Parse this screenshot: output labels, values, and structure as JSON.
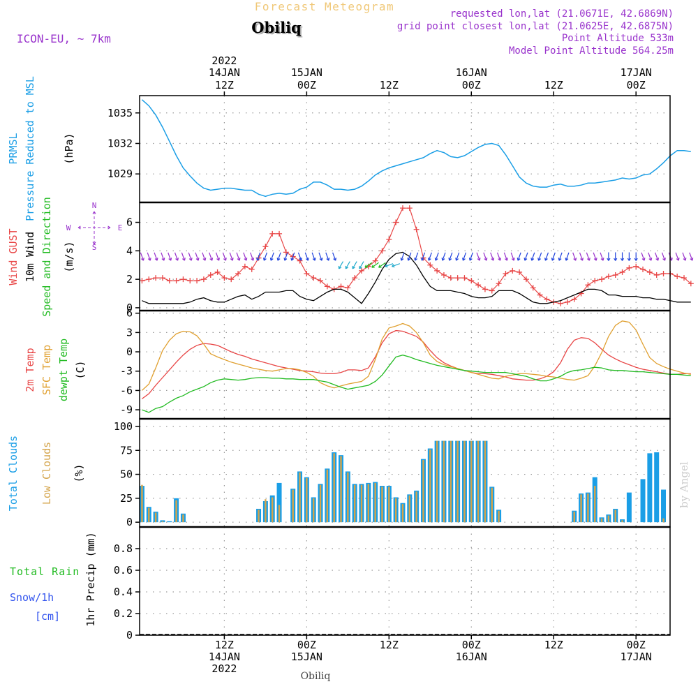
{
  "header": {
    "product": "Forecast Meteogram",
    "location": "Obiliq",
    "model": "ICON-EU, ~ 7km",
    "requested": "requested lon,lat (21.0671E, 42.6869N)",
    "gridpoint": "grid point closest lon,lat (21.0625E, 42.6875N)",
    "altitude": "Point Altitude 533m",
    "model_altitude": "Model Point Altitude 564.25m",
    "footer_location": "Obiliq",
    "credit": "by Angel"
  },
  "time_axis": {
    "top_year": "2022",
    "ticks": [
      {
        "h": 12,
        "top": [
          "14JAN",
          "12Z"
        ],
        "bottom": [
          "12Z",
          "14JAN",
          "2022"
        ]
      },
      {
        "h": 24,
        "top": [
          "15JAN",
          "00Z"
        ],
        "bottom": [
          "00Z",
          "15JAN"
        ]
      },
      {
        "h": 36,
        "top": [
          "",
          "12Z"
        ],
        "bottom": [
          "12Z"
        ]
      },
      {
        "h": 48,
        "top": [
          "16JAN",
          "00Z"
        ],
        "bottom": [
          "00Z",
          "16JAN"
        ]
      },
      {
        "h": 60,
        "top": [
          "",
          "12Z"
        ],
        "bottom": [
          "12Z"
        ]
      },
      {
        "h": 72,
        "top": [
          "17JAN",
          "00Z"
        ],
        "bottom": [
          "00Z",
          "17JAN"
        ]
      }
    ]
  },
  "colors": {
    "pressure": "#1a9ee6",
    "gust": "#e84545",
    "wind": "#000000",
    "direction": "#22bb22",
    "temp": "#e84545",
    "sfc": "#e0a030",
    "dewpt": "#22bb22",
    "total_clouds": "#1a9ee6",
    "low_clouds": "#d4a44a",
    "rain": "#22bb22",
    "snow": "#3355ee",
    "arrow_purple": "#9933cc",
    "arrow_blue": "#2244dd"
  },
  "chart_data": [
    {
      "type": "line",
      "id": "pressure",
      "ylabel": [
        "PRMSL",
        "Pressure Reduced to MSL",
        "(hPa)"
      ],
      "y_ticks": [
        1029,
        1032,
        1035
      ],
      "ylim": [
        1026.2,
        1036.7
      ],
      "grid": true,
      "x_hours": [
        0,
        1,
        2,
        3,
        4,
        5,
        6,
        7,
        8,
        9,
        10,
        11,
        12,
        13,
        14,
        15,
        16,
        17,
        18,
        19,
        20,
        21,
        22,
        23,
        24,
        25,
        26,
        27,
        28,
        29,
        30,
        31,
        32,
        33,
        34,
        35,
        36,
        37,
        38,
        39,
        40,
        41,
        42,
        43,
        44,
        45,
        46,
        47,
        48,
        49,
        50,
        51,
        52,
        53,
        54,
        55,
        56,
        57,
        58,
        59,
        60,
        61,
        62,
        63,
        64,
        65,
        66,
        67,
        68,
        69,
        70,
        71,
        72,
        73,
        74,
        75,
        76,
        77,
        78,
        79,
        80
      ],
      "series": [
        {
          "values": [
            1036.3,
            1035.7,
            1034.8,
            1033.6,
            1032.2,
            1030.8,
            1029.6,
            1028.8,
            1028.1,
            1027.6,
            1027.4,
            1027.5,
            1027.6,
            1027.6,
            1027.5,
            1027.4,
            1027.4,
            1027.0,
            1026.8,
            1027.0,
            1027.1,
            1027.0,
            1027.1,
            1027.5,
            1027.7,
            1028.2,
            1028.2,
            1027.9,
            1027.5,
            1027.5,
            1027.4,
            1027.5,
            1027.8,
            1028.3,
            1028.9,
            1029.3,
            1029.6,
            1029.8,
            1030.0,
            1030.2,
            1030.4,
            1030.6,
            1031.0,
            1031.3,
            1031.1,
            1030.7,
            1030.6,
            1030.8,
            1031.2,
            1031.6,
            1031.9,
            1032.0,
            1031.8,
            1030.9,
            1029.8,
            1028.7,
            1028.1,
            1027.8,
            1027.7,
            1027.7,
            1027.9,
            1028.0,
            1027.8,
            1027.8,
            1027.9,
            1028.1,
            1028.1,
            1028.2,
            1028.3,
            1028.4,
            1028.6,
            1028.5,
            1028.6,
            1028.9,
            1029.0,
            1029.5,
            1030.1,
            1030.8,
            1031.3,
            1031.3,
            1031.2
          ]
        }
      ]
    },
    {
      "type": "line",
      "id": "wind",
      "ylabel": [
        "Wind GUST",
        "10m Wind",
        "Speed and Direction",
        "(m/s)"
      ],
      "y_ticks": [
        0,
        2,
        4,
        6
      ],
      "ylim": [
        -0.2,
        7.4
      ],
      "grid": true,
      "compass": "N S W E",
      "x_hours": [
        0,
        1,
        2,
        3,
        4,
        5,
        6,
        7,
        8,
        9,
        10,
        11,
        12,
        13,
        14,
        15,
        16,
        17,
        18,
        19,
        20,
        21,
        22,
        23,
        24,
        25,
        26,
        27,
        28,
        29,
        30,
        31,
        32,
        33,
        34,
        35,
        36,
        37,
        38,
        39,
        40,
        41,
        42,
        43,
        44,
        45,
        46,
        47,
        48,
        49,
        50,
        51,
        52,
        53,
        54,
        55,
        56,
        57,
        58,
        59,
        60,
        61,
        62,
        63,
        64,
        65,
        66,
        67,
        68,
        69,
        70,
        71,
        72,
        73,
        74,
        75,
        76,
        77,
        78,
        79,
        80
      ],
      "series": [
        {
          "name": "Wind GUST",
          "values": [
            1.9,
            2.0,
            2.1,
            2.1,
            1.9,
            1.9,
            2.0,
            1.9,
            1.9,
            2.0,
            2.3,
            2.5,
            2.1,
            2.0,
            2.4,
            2.9,
            2.7,
            3.5,
            4.3,
            5.2,
            5.2,
            3.9,
            3.6,
            3.3,
            2.4,
            2.1,
            1.9,
            1.5,
            1.3,
            1.5,
            1.4,
            2.1,
            2.6,
            2.9,
            3.3,
            4.0,
            4.8,
            6.0,
            7.0,
            7.0,
            5.5,
            3.5,
            3.0,
            2.6,
            2.3,
            2.1,
            2.1,
            2.1,
            1.9,
            1.6,
            1.3,
            1.2,
            1.7,
            2.4,
            2.6,
            2.5,
            2.0,
            1.4,
            0.9,
            0.6,
            0.4,
            0.3,
            0.4,
            0.6,
            1.0,
            1.6,
            1.9,
            2.0,
            2.2,
            2.3,
            2.5,
            2.8,
            2.9,
            2.7,
            2.5,
            2.3,
            2.4,
            2.4,
            2.2,
            2.1,
            1.7
          ]
        },
        {
          "name": "10m Wind",
          "values": [
            0.5,
            0.3,
            0.3,
            0.3,
            0.3,
            0.3,
            0.3,
            0.4,
            0.6,
            0.7,
            0.5,
            0.4,
            0.4,
            0.6,
            0.8,
            0.9,
            0.6,
            0.8,
            1.1,
            1.1,
            1.1,
            1.2,
            1.2,
            0.8,
            0.6,
            0.5,
            0.8,
            1.1,
            1.3,
            1.3,
            1.1,
            0.7,
            0.3,
            1.0,
            1.8,
            2.7,
            3.4,
            3.8,
            3.9,
            3.6,
            3.0,
            2.2,
            1.5,
            1.2,
            1.2,
            1.2,
            1.1,
            1.0,
            0.8,
            0.7,
            0.7,
            0.8,
            1.2,
            1.2,
            1.2,
            1.0,
            0.7,
            0.4,
            0.3,
            0.3,
            0.4,
            0.5,
            0.7,
            0.9,
            1.1,
            1.3,
            1.3,
            1.2,
            0.9,
            0.9,
            0.8,
            0.8,
            0.8,
            0.7,
            0.7,
            0.6,
            0.6,
            0.5,
            0.4,
            0.4,
            0.4
          ]
        }
      ]
    },
    {
      "type": "line",
      "id": "temperature",
      "ylabel": [
        "2m Temp",
        "SFC Temp",
        "dewpt Temp",
        "(C)"
      ],
      "y_ticks": [
        -9,
        -6,
        -3,
        0,
        3,
        6
      ],
      "ylim": [
        -10.4,
        6.4
      ],
      "grid": true,
      "x_hours": [
        0,
        1,
        2,
        3,
        4,
        5,
        6,
        7,
        8,
        9,
        10,
        11,
        12,
        13,
        14,
        15,
        16,
        17,
        18,
        19,
        20,
        21,
        22,
        23,
        24,
        25,
        26,
        27,
        28,
        29,
        30,
        31,
        32,
        33,
        34,
        35,
        36,
        37,
        38,
        39,
        40,
        41,
        42,
        43,
        44,
        45,
        46,
        47,
        48,
        49,
        50,
        51,
        52,
        53,
        54,
        55,
        56,
        57,
        58,
        59,
        60,
        61,
        62,
        63,
        64,
        65,
        66,
        67,
        68,
        69,
        70,
        71,
        72,
        73,
        74,
        75,
        76,
        77,
        78,
        79,
        80
      ],
      "series": [
        {
          "name": "2m Temp",
          "values": [
            -7.3,
            -6.5,
            -5.2,
            -4.0,
            -2.8,
            -1.6,
            -0.5,
            0.4,
            1.0,
            1.3,
            1.2,
            1.0,
            0.5,
            0.0,
            -0.4,
            -0.7,
            -1.1,
            -1.4,
            -1.7,
            -2.0,
            -2.3,
            -2.5,
            -2.7,
            -2.9,
            -3.0,
            -3.1,
            -3.3,
            -3.4,
            -3.4,
            -3.2,
            -2.8,
            -2.8,
            -2.9,
            -2.5,
            -0.8,
            1.4,
            2.8,
            3.3,
            3.2,
            2.8,
            2.4,
            1.5,
            0.2,
            -0.9,
            -1.7,
            -2.2,
            -2.6,
            -2.9,
            -3.2,
            -3.4,
            -3.4,
            -3.5,
            -3.7,
            -3.9,
            -4.2,
            -4.3,
            -4.4,
            -4.4,
            -4.2,
            -3.8,
            -3.1,
            -1.7,
            0.4,
            1.8,
            2.2,
            2.1,
            1.4,
            0.4,
            -0.5,
            -1.1,
            -1.6,
            -2.0,
            -2.4,
            -2.7,
            -2.9,
            -3.1,
            -3.3,
            -3.5,
            -3.5,
            -3.4,
            -3.4
          ]
        },
        {
          "name": "SFC Temp",
          "values": [
            -6.0,
            -5.0,
            -2.5,
            0.2,
            1.8,
            2.8,
            3.2,
            3.1,
            2.5,
            1.2,
            -0.3,
            -0.8,
            -1.2,
            -1.6,
            -1.9,
            -2.2,
            -2.5,
            -2.7,
            -2.9,
            -3.0,
            -2.8,
            -2.6,
            -2.6,
            -2.8,
            -3.2,
            -3.8,
            -4.8,
            -5.3,
            -5.6,
            -5.3,
            -5.0,
            -4.8,
            -4.6,
            -3.8,
            -1.2,
            2.0,
            3.7,
            4.0,
            4.4,
            4.0,
            3.0,
            1.4,
            -0.5,
            -1.5,
            -2.0,
            -2.3,
            -2.6,
            -2.9,
            -3.2,
            -3.5,
            -3.8,
            -4.1,
            -4.2,
            -3.8,
            -3.6,
            -3.4,
            -3.4,
            -3.5,
            -3.6,
            -3.8,
            -3.9,
            -4.1,
            -4.3,
            -4.4,
            -4.1,
            -3.7,
            -2.2,
            -0.1,
            2.4,
            4.1,
            4.8,
            4.6,
            3.4,
            1.2,
            -0.9,
            -1.8,
            -2.3,
            -2.7,
            -3.0,
            -3.3,
            -3.5
          ]
        },
        {
          "name": "dewpt Temp",
          "values": [
            -9.0,
            -9.4,
            -8.8,
            -8.5,
            -7.8,
            -7.2,
            -6.8,
            -6.2,
            -5.8,
            -5.4,
            -4.8,
            -4.4,
            -4.2,
            -4.3,
            -4.4,
            -4.3,
            -4.1,
            -4.0,
            -4.0,
            -4.1,
            -4.1,
            -4.2,
            -4.2,
            -4.3,
            -4.3,
            -4.3,
            -4.5,
            -4.7,
            -5.1,
            -5.5,
            -5.8,
            -5.6,
            -5.4,
            -5.2,
            -4.6,
            -3.6,
            -2.2,
            -0.8,
            -0.5,
            -0.8,
            -1.2,
            -1.5,
            -1.8,
            -2.1,
            -2.3,
            -2.5,
            -2.7,
            -2.9,
            -3.0,
            -3.1,
            -3.2,
            -3.2,
            -3.2,
            -3.2,
            -3.4,
            -3.6,
            -3.8,
            -4.2,
            -4.5,
            -4.5,
            -4.2,
            -3.8,
            -3.2,
            -2.9,
            -2.8,
            -2.6,
            -2.4,
            -2.5,
            -2.8,
            -2.9,
            -2.9,
            -3.0,
            -3.1,
            -3.1,
            -3.2,
            -3.3,
            -3.4,
            -3.5,
            -3.5,
            -3.6,
            -3.7
          ]
        }
      ]
    },
    {
      "type": "bar",
      "id": "clouds",
      "ylabel": [
        "Total Clouds",
        "Low Clouds",
        "(%)"
      ],
      "y_ticks": [
        0,
        25,
        50,
        75,
        100
      ],
      "ylim": [
        -5,
        108
      ],
      "grid": true,
      "x_hours": [
        0,
        1,
        2,
        3,
        4,
        5,
        6,
        7,
        8,
        9,
        10,
        11,
        12,
        13,
        14,
        15,
        16,
        17,
        18,
        19,
        20,
        21,
        22,
        23,
        24,
        25,
        26,
        27,
        28,
        29,
        30,
        31,
        32,
        33,
        34,
        35,
        36,
        37,
        38,
        39,
        40,
        41,
        42,
        43,
        44,
        45,
        46,
        47,
        48,
        49,
        50,
        51,
        52,
        53,
        54,
        55,
        56,
        57,
        58,
        59,
        60,
        61,
        62,
        63,
        64,
        65,
        66,
        67,
        68,
        69,
        70,
        71,
        72,
        73,
        74,
        75,
        76,
        77,
        78,
        79,
        80
      ],
      "series": [
        {
          "name": "Total Clouds",
          "values": [
            38,
            16,
            11,
            2,
            1,
            25,
            9,
            0,
            0,
            0,
            0,
            0,
            0,
            0,
            0,
            0,
            0,
            14,
            22,
            28,
            41,
            0,
            35,
            53,
            47,
            26,
            40,
            56,
            73,
            70,
            53,
            40,
            40,
            41,
            42,
            38,
            38,
            26,
            20,
            29,
            33,
            66,
            77,
            85,
            85,
            85,
            85,
            85,
            85,
            85,
            85,
            37,
            13,
            0,
            0,
            0,
            0,
            0,
            0,
            0,
            0,
            0,
            0,
            12,
            30,
            31,
            47,
            5,
            8,
            14,
            3,
            31,
            0,
            45,
            72,
            73,
            34,
            0,
            0,
            0,
            0
          ]
        },
        {
          "name": "Low Clouds",
          "values": [
            39,
            15,
            10,
            1,
            0,
            23,
            8,
            0,
            0,
            0,
            0,
            0,
            0,
            0,
            0,
            0,
            0,
            13,
            24,
            26,
            18,
            0,
            34,
            52,
            46,
            25,
            39,
            55,
            72,
            69,
            52,
            39,
            39,
            40,
            41,
            37,
            37,
            25,
            19,
            28,
            32,
            65,
            76,
            85,
            85,
            85,
            85,
            85,
            85,
            85,
            85,
            36,
            12,
            0,
            0,
            0,
            0,
            0,
            0,
            0,
            0,
            0,
            0,
            11,
            29,
            30,
            38,
            4,
            7,
            13,
            2,
            0,
            0,
            0,
            0,
            0,
            4,
            0,
            0,
            0,
            0
          ]
        }
      ]
    },
    {
      "type": "bar",
      "id": "precip",
      "ylabel": [
        "1hr Precip (mm)"
      ],
      "legend": [
        "Total Rain",
        "Snow/1h",
        "[cm]"
      ],
      "y_ticks": [
        0,
        0.2,
        0.4,
        0.6,
        0.8
      ],
      "ylim": [
        0,
        1.0
      ],
      "grid": true,
      "series": [
        {
          "name": "Total Rain",
          "values": []
        },
        {
          "name": "Snow/1h",
          "values": []
        }
      ]
    }
  ]
}
